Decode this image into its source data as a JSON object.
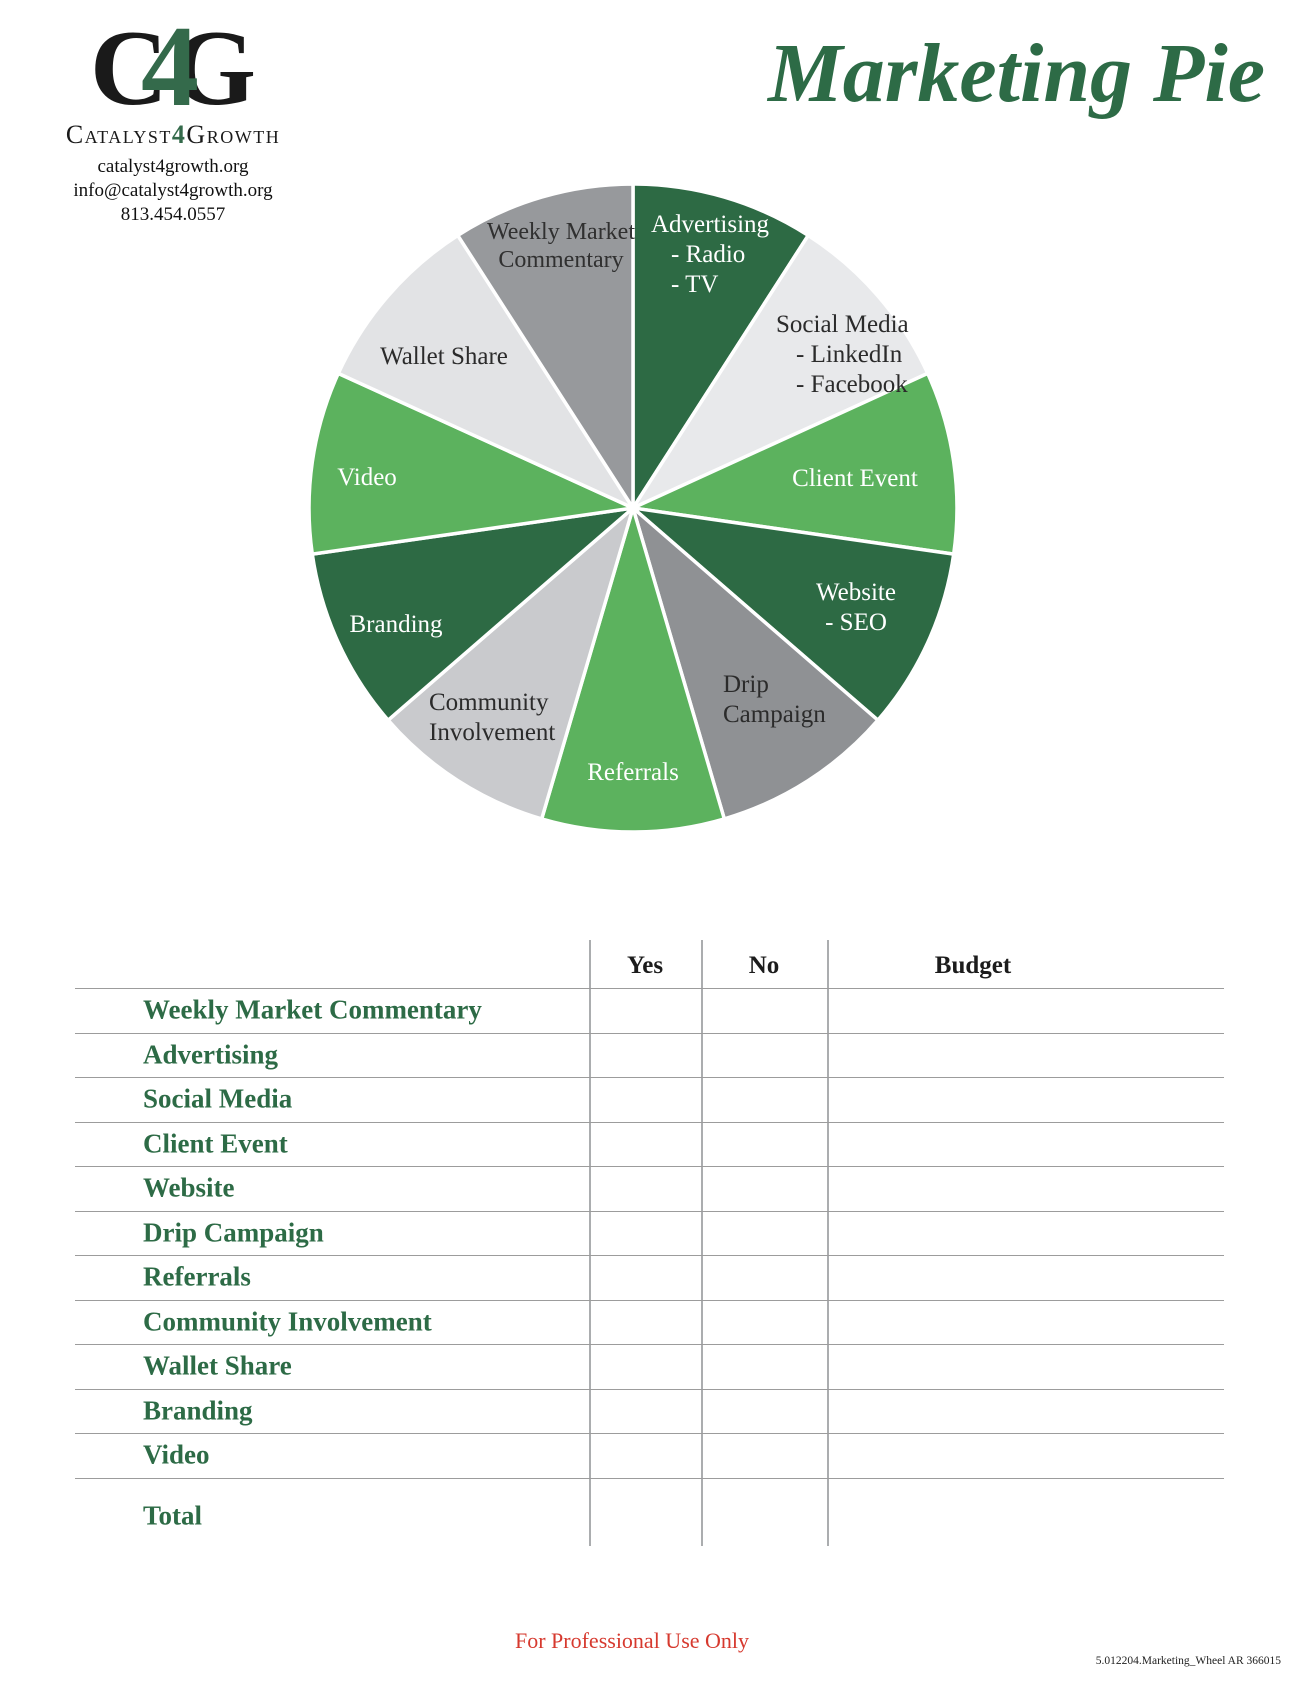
{
  "logo": {
    "monogram_c": "C",
    "monogram_4": "4",
    "monogram_g": "G",
    "name_pre": "Catalyst",
    "name_4": "4",
    "name_post": "Growth",
    "website": "catalyst4growth.org",
    "email": "info@catalyst4growth.org",
    "phone": "813.454.0557",
    "accent_color": "#346a4b"
  },
  "title": {
    "text": "Marketing Pie",
    "color": "#2d6b46"
  },
  "chart_data": {
    "type": "pie",
    "title": "Marketing Pie",
    "start_angle_deg": 0,
    "direction": "clockwise",
    "note": "11 equal slices",
    "slices": [
      {
        "label": "Advertising",
        "sublabels": [
          "- Radio",
          "- TV"
        ],
        "value": 1,
        "color": "#2d6a44",
        "text_color": "#ffffff"
      },
      {
        "label": "Social Media",
        "sublabels": [
          "- LinkedIn",
          "- Facebook"
        ],
        "value": 1,
        "color": "#e8e9eb",
        "text_color": "#2b2b2b"
      },
      {
        "label": "Client Event",
        "value": 1,
        "color": "#5cb25e",
        "text_color": "#ffffff"
      },
      {
        "label": "Website",
        "sublabels": [
          "- SEO"
        ],
        "value": 1,
        "color": "#2d6a44",
        "text_color": "#ffffff"
      },
      {
        "label": "Drip Campaign",
        "label_lines": [
          "Drip",
          "Campaign"
        ],
        "value": 1,
        "color": "#8f9194",
        "text_color": "#2b2b2b"
      },
      {
        "label": "Referrals",
        "value": 1,
        "color": "#5cb25e",
        "text_color": "#ffffff"
      },
      {
        "label": "Community Involvement",
        "label_lines": [
          "Community",
          "Involvement"
        ],
        "value": 1,
        "color": "#c9cacd",
        "text_color": "#2b2b2b"
      },
      {
        "label": "Branding",
        "value": 1,
        "color": "#2d6a44",
        "text_color": "#ffffff"
      },
      {
        "label": "Video",
        "value": 1,
        "color": "#5cb25e",
        "text_color": "#ffffff"
      },
      {
        "label": "Wallet Share",
        "value": 1,
        "color": "#e2e3e5",
        "text_color": "#2b2b2b"
      },
      {
        "label": "Weekly Market Commentary",
        "label_lines": [
          "Weekly Market",
          "Commentary"
        ],
        "value": 1,
        "color": "#97999c",
        "text_color": "#303030"
      }
    ]
  },
  "table": {
    "headers": [
      "Yes",
      "No",
      "Budget"
    ],
    "rows": [
      "Weekly Market Commentary",
      "Advertising",
      "Social Media",
      "Client Event",
      "Website",
      "Drip Campaign",
      "Referrals",
      "Community Involvement",
      "Wallet Share",
      "Branding",
      "Video"
    ],
    "total_label": "Total"
  },
  "footer": {
    "disclaimer": "For Professional Use Only",
    "disclaimer_color": "#d6392e",
    "doc_code": "5.012204.Marketing_Wheel  AR 366015"
  }
}
